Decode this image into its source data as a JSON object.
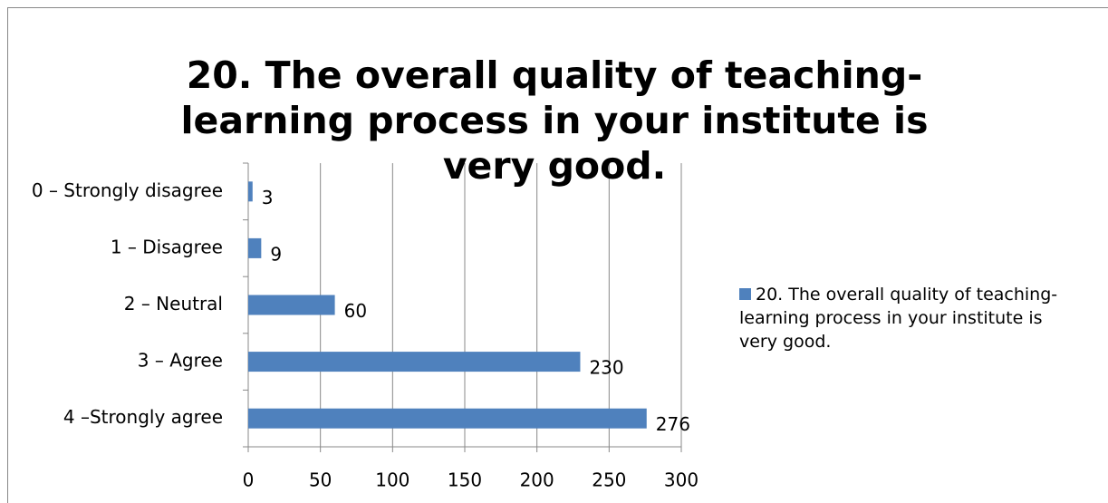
{
  "chart_data": {
    "type": "bar",
    "orientation": "horizontal",
    "title": "20. The overall quality of teaching-learning process in your institute is very good.",
    "categories": [
      "0 – Strongly disagree",
      "1 – Disagree",
      "2 – Neutral",
      "3 – Agree",
      "4 –Strongly agree"
    ],
    "series": [
      {
        "name": "20. The overall quality of teaching-learning process in your institute is very good.",
        "color": "#4f81bd",
        "values": [
          3,
          9,
          60,
          230,
          276
        ]
      }
    ],
    "xlim": [
      0,
      300
    ],
    "xticks": [
      0,
      50,
      100,
      150,
      200,
      250,
      300
    ],
    "grid": true,
    "legend": "right"
  }
}
